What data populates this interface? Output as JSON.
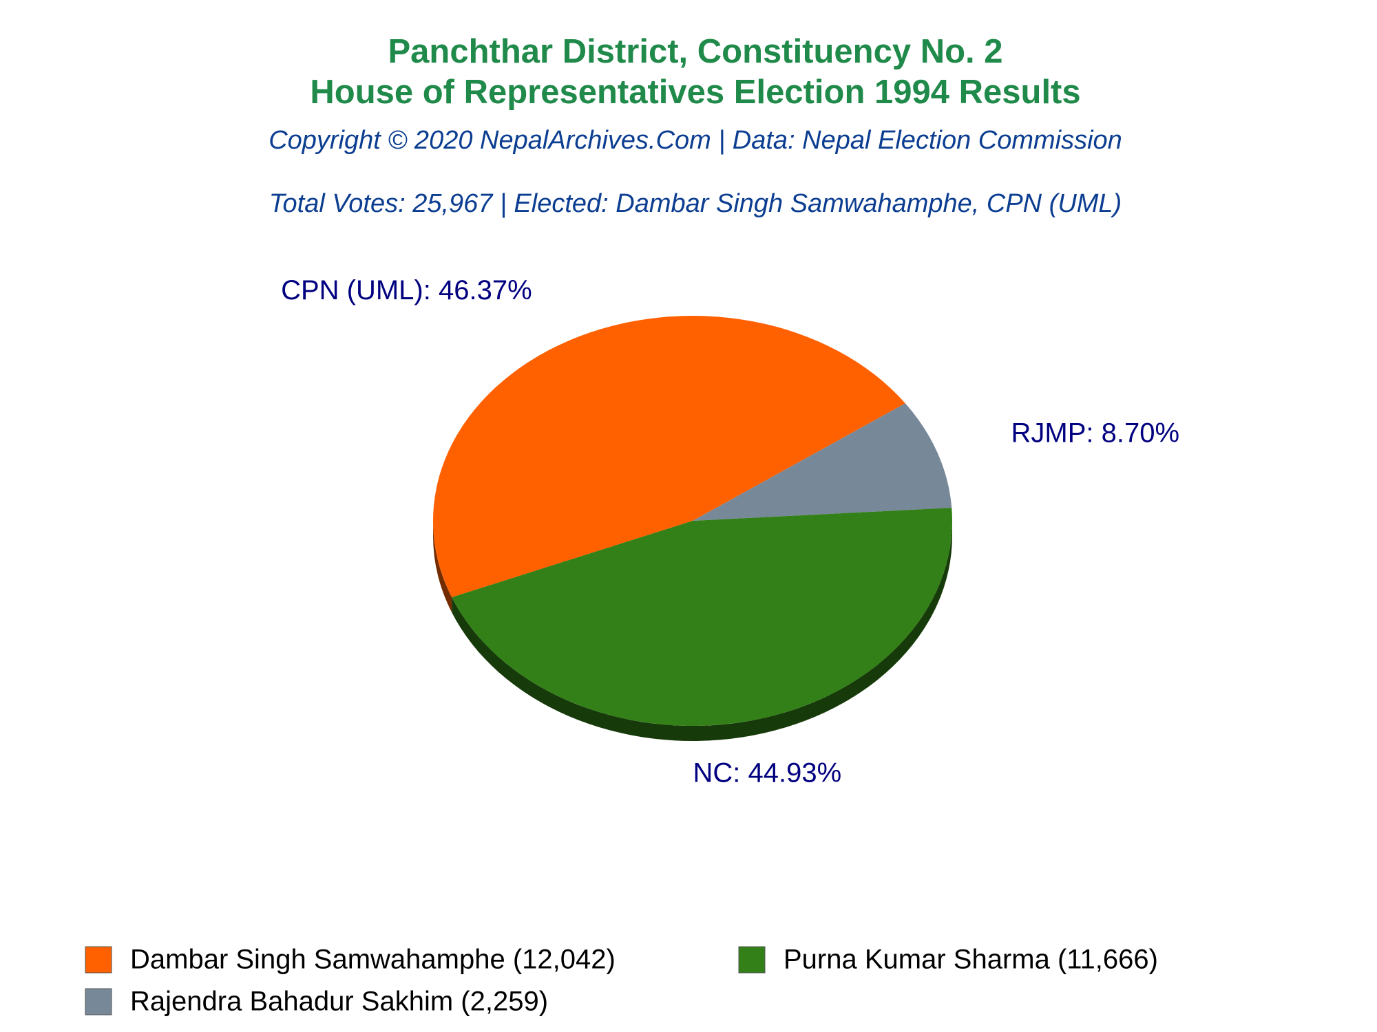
{
  "chart_data": {
    "type": "pie",
    "title": [
      "Panchthar District, Constituency No. 2",
      "House of Representatives Election 1994 Results"
    ],
    "subtitle": [
      "Copyright © 2020 NepalArchives.Com | Data: Nepal Election Commission",
      "Total Votes: 25,967 | Elected: Dambar Singh Samwahamphe, CPN (UML)"
    ],
    "categories": [
      "Dambar Singh Samwahamphe (12,042)",
      "Rajendra Bahadur Sakhim (2,259)",
      "Purna Kumar Sharma (11,666)"
    ],
    "values": [
      46.37,
      8.7,
      44.93
    ],
    "value_labels": [
      "CPN (UML): 46.37%",
      "RJMP: 8.70%",
      "NC: 44.93%"
    ],
    "colors": [
      "#ff6100",
      "#778899",
      "#328017"
    ],
    "legend": "bottom"
  }
}
